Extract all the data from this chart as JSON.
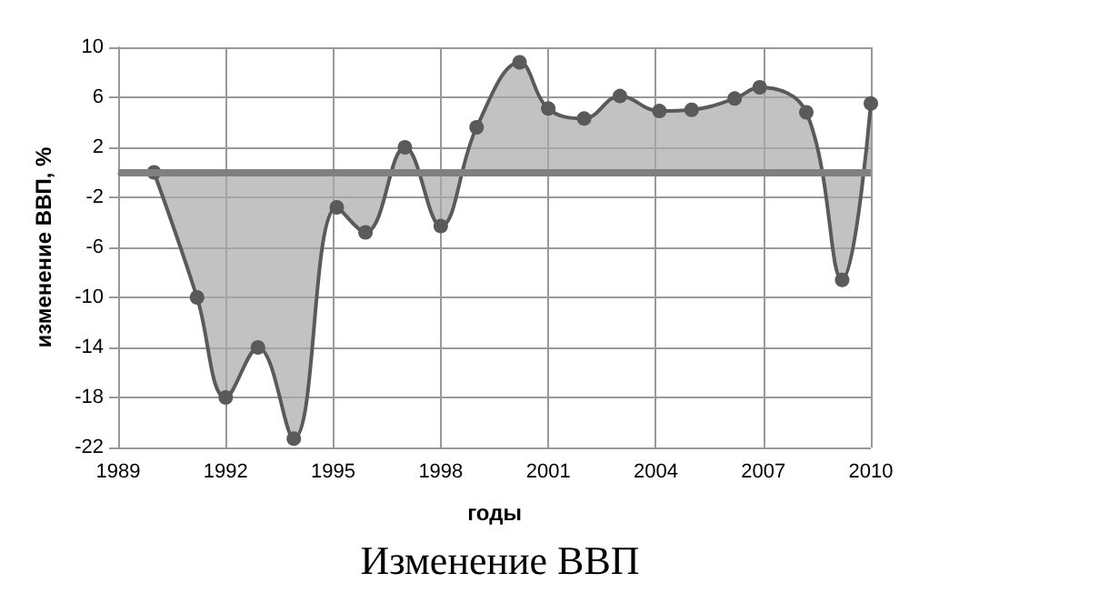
{
  "chart_data": {
    "type": "area",
    "title": "Изменение ВВП",
    "xlabel": "годы",
    "ylabel": "изменение ВВП, %",
    "x": [
      1990.0,
      1991.2,
      1992.0,
      1992.9,
      1993.9,
      1995.1,
      1995.9,
      1997.0,
      1998.0,
      1999.0,
      2000.2,
      2001.0,
      2002.0,
      2003.0,
      2004.1,
      2005.0,
      2006.2,
      2006.9,
      2008.2,
      2009.2,
      2010.0
    ],
    "series": [
      {
        "color": "#5a5a5a",
        "values": [
          0,
          -10,
          -18,
          -14,
          -21.3,
          -2.8,
          -4.8,
          2.0,
          -4.3,
          3.6,
          8.8,
          5.1,
          4.3,
          6.1,
          4.9,
          5.0,
          5.9,
          6.8,
          4.8,
          -8.6,
          5.5
        ]
      }
    ],
    "xlim": [
      1989,
      2010
    ],
    "xticks": [
      1989,
      1992,
      1995,
      1998,
      2001,
      2004,
      2007,
      2010
    ],
    "ylim": [
      -22,
      10
    ],
    "yticks": [
      -22,
      -18,
      -14,
      -10,
      -6,
      -2,
      2,
      6,
      10
    ],
    "grid": true,
    "marker": "circle",
    "line_style": "solid",
    "ref_lines": [
      {
        "axis": "y",
        "value": 0,
        "color": "#808080"
      }
    ]
  }
}
